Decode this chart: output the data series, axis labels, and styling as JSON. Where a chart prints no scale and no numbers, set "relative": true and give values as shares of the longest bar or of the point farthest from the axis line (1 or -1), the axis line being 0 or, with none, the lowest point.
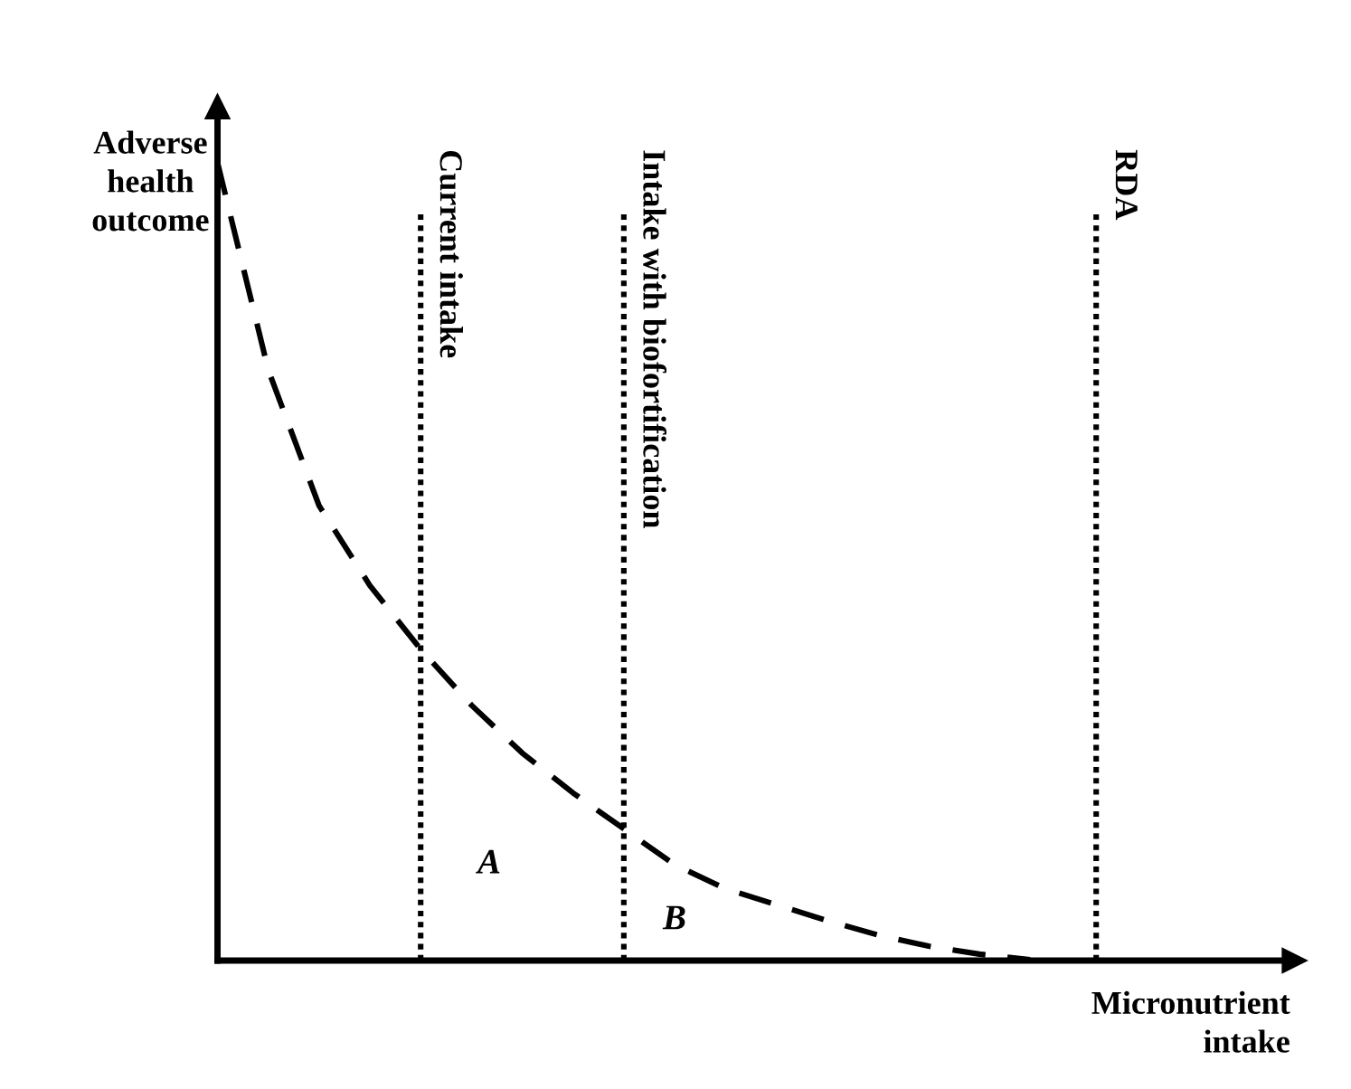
{
  "chart_data": {
    "type": "line",
    "relative": true,
    "xlabel": "Micronutrient intake",
    "ylabel": "Adverse health outcome",
    "categories": [
      null,
      null,
      null,
      null,
      null,
      null,
      null,
      null,
      null,
      null,
      null,
      null,
      null,
      null,
      null,
      null,
      null,
      null,
      null,
      null,
      null,
      null
    ],
    "line_style": "dashed",
    "marker": "none",
    "legend": false,
    "series": [
      {
        "color": "#000000",
        "values": [
          1.0,
          0.74,
          0.57,
          0.47,
          0.39,
          0.32,
          0.26,
          0.21,
          0.165,
          0.12,
          0.09,
          0.07,
          0.05,
          0.032,
          0.018,
          0.008,
          0.001,
          null,
          null,
          null,
          null,
          null
        ]
      }
    ],
    "ref_lines": [
      {
        "axis": "x",
        "label": "Current intake",
        "line_style": "dotted",
        "color": "#000000"
      },
      {
        "axis": "x",
        "label": "Intake with biofortification",
        "line_style": "dotted",
        "color": "#000000"
      },
      {
        "axis": "x",
        "label": "RDA",
        "line_style": "dotted",
        "color": "#000000"
      }
    ],
    "annotations": [
      "A",
      "B"
    ]
  }
}
